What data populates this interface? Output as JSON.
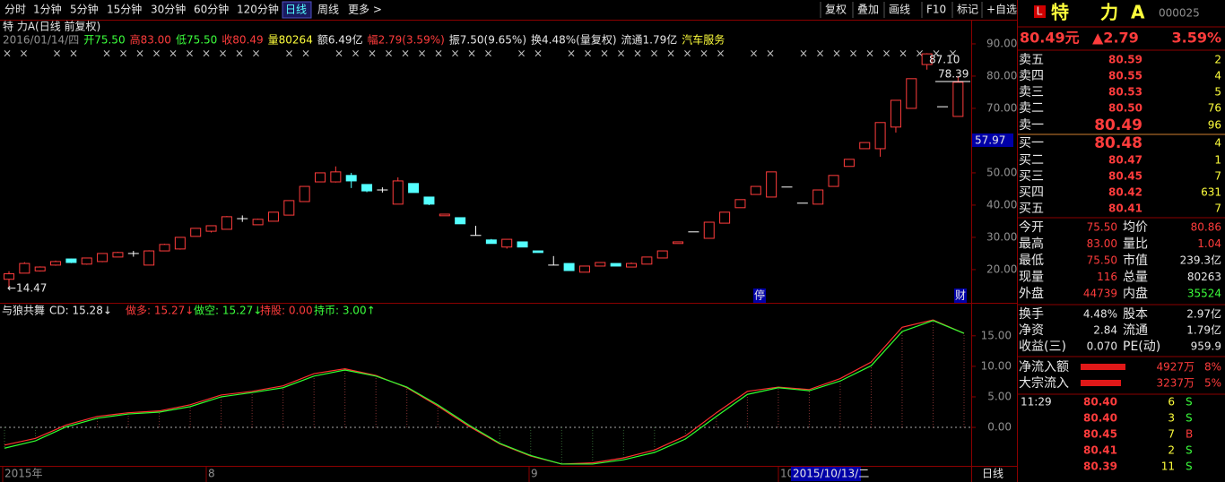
{
  "toolbar": {
    "periods": [
      "分时",
      "1分钟",
      "5分钟",
      "15分钟",
      "30分钟",
      "60分钟",
      "120分钟",
      "日线",
      "周线",
      "更多 >"
    ],
    "tools": [
      "复权",
      "叠加",
      "画线",
      "F10",
      "标记",
      "+自选"
    ]
  },
  "kline": {
    "title": "特 力A(日线 前复权)",
    "info": [
      "2016/01/14/四",
      "开75.50",
      "高83.00",
      "低75.50",
      "收80.49",
      "量80264",
      "额6.49亿",
      "幅2.79(3.59%)",
      "振7.50(9.65%)",
      "换4.48%(量复权)",
      "流通1.79亿",
      "汽车服务"
    ],
    "ylim": [
      9.7,
      93.6
    ],
    "yticks": [
      {
        "value": 90,
        "label": "90.00"
      },
      {
        "value": 80,
        "label": "80.00"
      },
      {
        "value": 70,
        "label": "70.00"
      },
      {
        "value": 50,
        "label": "50.00"
      },
      {
        "value": 40,
        "label": "40.00"
      },
      {
        "value": 30,
        "label": "30.00"
      },
      {
        "value": 20,
        "label": "20.00"
      }
    ],
    "candles": [
      [
        17.0,
        18.7,
        19.5,
        14.47
      ],
      [
        18.9,
        21.9,
        22.3,
        18.9
      ],
      [
        19.6,
        20.8,
        21.0,
        19.4
      ],
      [
        21.4,
        22.5,
        22.8,
        21.2
      ],
      [
        23.3,
        22.2,
        23.4,
        22.0
      ],
      [
        21.7,
        23.6,
        23.6,
        21.5
      ],
      [
        22.5,
        25.0,
        25.0,
        22.3
      ],
      [
        23.9,
        25.3,
        25.5,
        23.9
      ],
      [
        25.0,
        25.0,
        25.8,
        24.0
      ],
      [
        21.4,
        25.8,
        26.0,
        21.4
      ],
      [
        25.8,
        27.8,
        28.0,
        25.8
      ],
      [
        26.4,
        30.0,
        30.0,
        26.2
      ],
      [
        30.3,
        32.8,
        32.8,
        30.3
      ],
      [
        31.9,
        33.6,
        33.6,
        31.5
      ],
      [
        32.5,
        36.4,
        36.6,
        32.5
      ],
      [
        35.8,
        35.8,
        36.8,
        34.8
      ],
      [
        33.9,
        35.6,
        35.8,
        33.9
      ],
      [
        35.0,
        37.8,
        37.8,
        35.0
      ],
      [
        36.9,
        41.4,
        41.4,
        36.9
      ],
      [
        41.1,
        45.8,
        45.8,
        41.1
      ],
      [
        47.2,
        50.0,
        50.0,
        47.2
      ],
      [
        47.2,
        50.3,
        52.0,
        47.0
      ],
      [
        49.2,
        47.5,
        50.0,
        45.3
      ],
      [
        46.4,
        44.4,
        46.4,
        44.0
      ],
      [
        44.7,
        44.7,
        45.5,
        43.9
      ],
      [
        40.3,
        47.5,
        48.6,
        40.3
      ],
      [
        46.7,
        43.9,
        46.7,
        43.9
      ],
      [
        42.5,
        40.3,
        42.5,
        40.0
      ],
      [
        36.7,
        37.2,
        37.2,
        36.7
      ],
      [
        36.1,
        34.2,
        36.1,
        34.2
      ],
      [
        30.6,
        30.6,
        33.6,
        30.6
      ],
      [
        29.2,
        28.1,
        29.5,
        28.1
      ],
      [
        27.0,
        29.4,
        29.4,
        26.5
      ],
      [
        28.6,
        27.0,
        28.6,
        27.0
      ],
      [
        25.8,
        25.3,
        25.8,
        25.3
      ],
      [
        21.4,
        21.4,
        24.2,
        21.4
      ],
      [
        21.9,
        19.7,
        21.9,
        19.7
      ],
      [
        19.2,
        21.1,
        21.1,
        19.2
      ],
      [
        21.1,
        22.2,
        22.2,
        21.1
      ],
      [
        21.9,
        21.1,
        21.9,
        21.1
      ],
      [
        20.8,
        21.9,
        22.2,
        20.8
      ],
      [
        21.7,
        23.9,
        23.9,
        21.7
      ],
      [
        23.6,
        25.8,
        25.8,
        23.6
      ],
      [
        28.1,
        28.6,
        28.6,
        28.1
      ],
      [
        31.7,
        31.7,
        31.7,
        31.7
      ],
      [
        29.7,
        34.7,
        34.7,
        29.7
      ],
      [
        34.4,
        37.8,
        37.8,
        34.4
      ],
      [
        39.2,
        41.7,
        41.7,
        39.2
      ],
      [
        43.3,
        45.8,
        45.8,
        43.3
      ],
      [
        42.5,
        50.3,
        50.3,
        42.5
      ],
      [
        45.6,
        45.6,
        45.6,
        45.6
      ],
      [
        40.6,
        40.6,
        40.6,
        40.6
      ],
      [
        40.3,
        44.7,
        44.7,
        40.3
      ],
      [
        45.8,
        49.2,
        49.2,
        45.8
      ],
      [
        52.0,
        54.2,
        54.2,
        52.0
      ],
      [
        57.5,
        59.4,
        59.4,
        57.5
      ],
      [
        57.5,
        65.6,
        65.6,
        55.0
      ],
      [
        64.2,
        72.5,
        72.5,
        62.5
      ],
      [
        70.0,
        79.2,
        79.2,
        70.0
      ],
      [
        83.6,
        86.9,
        87.1,
        82.0
      ],
      [
        70.5,
        70.5,
        70.5,
        70.5
      ],
      [
        67.5,
        78.1,
        80.0,
        67.5
      ]
    ],
    "high_label": "87.10",
    "ref_label": "78.39",
    "low_label": "←14.47",
    "cursor_label": "57.97",
    "flags": [
      "停",
      "财"
    ]
  },
  "indicator": {
    "header": [
      "与狼共舞",
      "CD: 15.28↓",
      "做多: 15.27↓",
      "做空: 15.27↓",
      "持股: 0.00",
      "持币: 3.00↑"
    ],
    "ylim": [
      -6.3,
      20.4
    ],
    "yticks": [
      {
        "value": 15,
        "label": "15.00"
      },
      {
        "value": 10,
        "label": "10.00"
      },
      {
        "value": 5,
        "label": "5.00"
      },
      {
        "value": 0,
        "label": "0.00"
      }
    ],
    "series": [
      {
        "color": "#ff3030",
        "values": [
          -2.9,
          -1.8,
          0.4,
          1.8,
          2.4,
          2.7,
          3.7,
          5.3,
          5.9,
          6.8,
          8.8,
          9.6,
          8.5,
          6.5,
          3.5,
          0.2,
          -2.7,
          -4.7,
          -6.0,
          -5.8,
          -5.0,
          -3.7,
          -1.4,
          2.4,
          5.9,
          6.6,
          6.2,
          8.0,
          10.7,
          16.4,
          17.6,
          15.4
        ]
      },
      {
        "color": "#30ff30",
        "values": [
          -3.4,
          -2.2,
          0.1,
          1.5,
          2.2,
          2.5,
          3.4,
          5.0,
          5.7,
          6.5,
          8.4,
          9.4,
          8.4,
          6.6,
          3.7,
          0.4,
          -2.6,
          -4.6,
          -6.0,
          -6.0,
          -5.3,
          -4.1,
          -1.9,
          1.8,
          5.4,
          6.5,
          6.0,
          7.6,
          10.1,
          15.7,
          17.5,
          15.4
        ]
      }
    ]
  },
  "dates": {
    "labels": [
      "2015年",
      "8",
      "9",
      "10"
    ],
    "cursor": "2015/10/13/二",
    "period": "日线"
  },
  "quote": {
    "badge": "L",
    "name": "特 力A",
    "code": "000025",
    "price": "80.49元",
    "change": "▲2.79",
    "pct": "3.59%",
    "book": [
      [
        "卖五",
        "80.59",
        "2"
      ],
      [
        "卖四",
        "80.55",
        "4"
      ],
      [
        "卖三",
        "80.53",
        "5"
      ],
      [
        "卖二",
        "80.50",
        "76"
      ],
      [
        "卖一",
        "80.49",
        "96"
      ],
      [
        "买一",
        "80.48",
        "4"
      ],
      [
        "买二",
        "80.47",
        "1"
      ],
      [
        "买三",
        "80.45",
        "7"
      ],
      [
        "买四",
        "80.42",
        "631"
      ],
      [
        "买五",
        "80.41",
        "7"
      ]
    ],
    "stats": [
      [
        "今开",
        "75.50",
        "均价",
        "80.86"
      ],
      [
        "最高",
        "83.00",
        "量比",
        "1.04"
      ],
      [
        "最低",
        "75.50",
        "市值",
        "239.3亿"
      ],
      [
        "现量",
        "116",
        "总量",
        "80263"
      ],
      [
        "外盘",
        "44739",
        "内盘",
        "35524"
      ]
    ],
    "stats2": [
      [
        "换手",
        "4.48%",
        "股本",
        "2.97亿"
      ],
      [
        "净资",
        "2.84",
        "流通",
        "1.79亿"
      ],
      [
        "收益(三)",
        "0.070",
        "PE(动)",
        "959.9"
      ]
    ],
    "flows": [
      [
        "净流入额",
        "4927万",
        "8%"
      ],
      [
        "大宗流入",
        "3237万",
        "5%"
      ]
    ],
    "ticks": [
      {
        "time": "11:29",
        "price": "80.40",
        "vol": "6",
        "side": "S"
      },
      {
        "price": "80.40",
        "vol": "3",
        "side": "S"
      },
      {
        "price": "80.45",
        "vol": "7",
        "side": "B"
      },
      {
        "price": "80.41",
        "vol": "2",
        "side": "S"
      },
      {
        "price": "80.39",
        "vol": "11",
        "side": "S"
      }
    ]
  }
}
